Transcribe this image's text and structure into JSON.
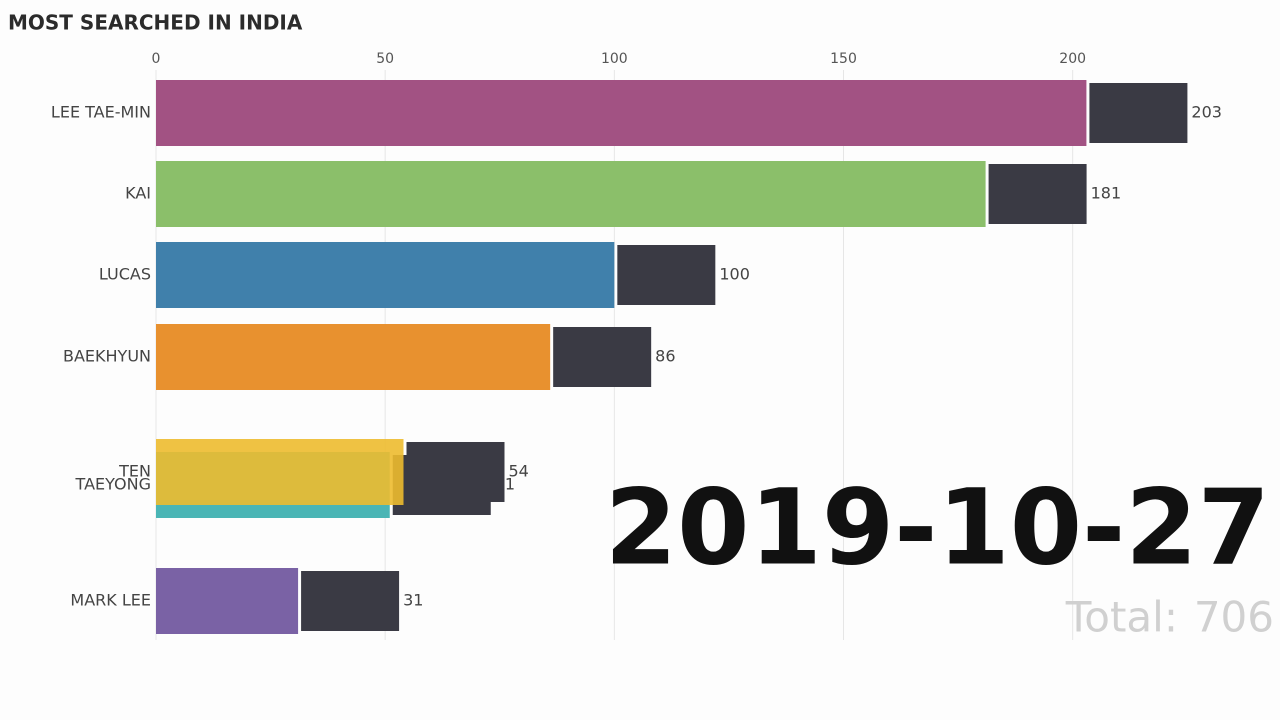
{
  "chart_data": {
    "type": "bar",
    "orientation": "horizontal",
    "title": "MOST SEARCHED IN INDIA",
    "categories": [
      "LEE TAE-MIN",
      "KAI",
      "LUCAS",
      "BAEKHYUN",
      "TEN",
      "TAEYONG",
      "MARK LEE"
    ],
    "values": [
      203,
      181,
      100,
      86,
      54,
      51,
      31
    ],
    "colors": [
      "#a25283",
      "#8bbf6a",
      "#4080ab",
      "#e8912f",
      "#edbb2f",
      "#4ab5b5",
      "#7a62a5"
    ],
    "xlim": [
      0,
      240
    ],
    "xticks": [
      0,
      50,
      100,
      150,
      200
    ],
    "grid": true,
    "date": "2019-10-27",
    "total_label": "Total:",
    "total": 706
  }
}
